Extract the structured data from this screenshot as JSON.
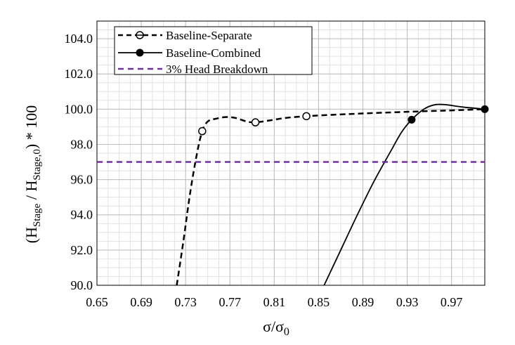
{
  "chart_data": {
    "type": "line",
    "xlim": [
      0.65,
      1.0
    ],
    "ylim": [
      90.0,
      105.0
    ],
    "x_ticks": [
      "0.65",
      "0.69",
      "0.73",
      "0.77",
      "0.81",
      "0.85",
      "0.89",
      "0.93",
      "0.97"
    ],
    "y_ticks": [
      "90.0",
      "92.0",
      "94.0",
      "96.0",
      "98.0",
      "100.0",
      "102.0",
      "104.0"
    ],
    "x_tick_values": [
      0.65,
      0.69,
      0.73,
      0.77,
      0.81,
      0.85,
      0.89,
      0.93,
      0.97
    ],
    "y_tick_values": [
      90,
      92,
      94,
      96,
      98,
      100,
      102,
      104
    ],
    "xlabel": {
      "main": "σ/σ",
      "sub": "0"
    },
    "ylabel": {
      "p1": "(H",
      "sub1": "Stage",
      "p2": " / H",
      "sub2": "Stage,0",
      "p3": ") * 100"
    },
    "grid": true,
    "legend_position": "top-left",
    "series": [
      {
        "name": "Baseline-Separate",
        "color": "#000000",
        "dash": "dashed",
        "marker": "open-circle",
        "markers": [
          {
            "x": 0.745,
            "y": 98.75
          },
          {
            "x": 0.793,
            "y": 99.25
          },
          {
            "x": 0.839,
            "y": 99.6
          }
        ],
        "curve": [
          {
            "x": 0.722,
            "y": 90.0
          },
          {
            "x": 0.728,
            "y": 92.5
          },
          {
            "x": 0.734,
            "y": 95.2
          },
          {
            "x": 0.74,
            "y": 97.4
          },
          {
            "x": 0.745,
            "y": 98.75
          },
          {
            "x": 0.75,
            "y": 99.3
          },
          {
            "x": 0.757,
            "y": 99.45
          },
          {
            "x": 0.766,
            "y": 99.55
          },
          {
            "x": 0.775,
            "y": 99.5
          },
          {
            "x": 0.785,
            "y": 99.3
          },
          {
            "x": 0.793,
            "y": 99.25
          },
          {
            "x": 0.805,
            "y": 99.35
          },
          {
            "x": 0.82,
            "y": 99.5
          },
          {
            "x": 0.839,
            "y": 99.6
          },
          {
            "x": 0.87,
            "y": 99.7
          },
          {
            "x": 0.9,
            "y": 99.78
          },
          {
            "x": 0.94,
            "y": 99.87
          },
          {
            "x": 0.97,
            "y": 99.93
          },
          {
            "x": 1.0,
            "y": 100.0
          }
        ]
      },
      {
        "name": "Baseline-Combined",
        "color": "#000000",
        "dash": "solid",
        "marker": "filled-circle",
        "markers": [
          {
            "x": 0.934,
            "y": 99.4
          },
          {
            "x": 1.0,
            "y": 100.0
          }
        ],
        "curve": [
          {
            "x": 0.855,
            "y": 90.0
          },
          {
            "x": 0.87,
            "y": 92.0
          },
          {
            "x": 0.885,
            "y": 94.0
          },
          {
            "x": 0.9,
            "y": 95.9
          },
          {
            "x": 0.915,
            "y": 97.6
          },
          {
            "x": 0.925,
            "y": 98.7
          },
          {
            "x": 0.934,
            "y": 99.4
          },
          {
            "x": 0.945,
            "y": 100.0
          },
          {
            "x": 0.955,
            "y": 100.25
          },
          {
            "x": 0.965,
            "y": 100.25
          },
          {
            "x": 0.98,
            "y": 100.12
          },
          {
            "x": 1.0,
            "y": 100.0
          }
        ]
      },
      {
        "name": "3% Head Breakdown",
        "color": "#7030A0",
        "dash": "dashed",
        "marker": "none",
        "markers": [],
        "curve": [
          {
            "x": 0.65,
            "y": 97.0
          },
          {
            "x": 1.0,
            "y": 97.0
          }
        ]
      }
    ]
  }
}
